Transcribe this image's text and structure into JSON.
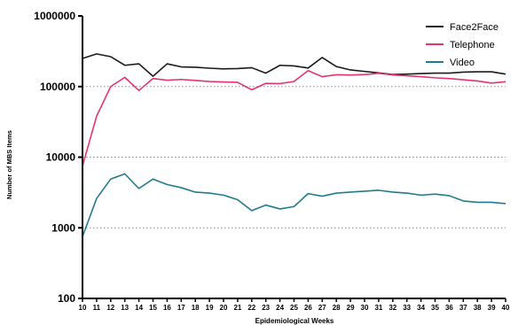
{
  "chart_data": {
    "type": "line",
    "title": "",
    "xlabel": "Epidemiological Weeks",
    "ylabel": "Number of MBS Items",
    "yscale": "log",
    "ylim": [
      100,
      1000000
    ],
    "xlim": [
      10,
      40
    ],
    "grid": "horizontal dotted",
    "legend_position": "top-right",
    "x": [
      10,
      11,
      12,
      13,
      14,
      15,
      16,
      17,
      18,
      19,
      20,
      21,
      22,
      23,
      24,
      25,
      26,
      27,
      28,
      29,
      30,
      31,
      32,
      33,
      34,
      35,
      36,
      37,
      38,
      39,
      40
    ],
    "x_tick_labels": [
      "10",
      "11",
      "12",
      "13",
      "14",
      "15",
      "16",
      "17",
      "18",
      "19",
      "20",
      "21",
      "22",
      "23",
      "24",
      "25",
      "26",
      "27",
      "28",
      "29",
      "30",
      "31",
      "32",
      "33",
      "34",
      "35",
      "36",
      "37",
      "38",
      "39",
      "40"
    ],
    "y_ticks": [
      100,
      1000,
      10000,
      100000,
      1000000
    ],
    "y_tick_labels": [
      "100",
      "1000",
      "10000",
      "100000",
      "1000000"
    ],
    "series": [
      {
        "name": "Face2Face",
        "color": "#1a1a1a",
        "values": [
          250000,
          290000,
          265000,
          200000,
          210000,
          140000,
          210000,
          190000,
          188000,
          182000,
          178000,
          180000,
          185000,
          155000,
          200000,
          196000,
          183000,
          258000,
          192000,
          172000,
          164000,
          156000,
          148000,
          150000,
          153000,
          155000,
          155000,
          160000,
          162000,
          162000,
          150000
        ]
      },
      {
        "name": "Telephone",
        "color": "#e6336f",
        "values": [
          7500,
          38000,
          100000,
          135000,
          88000,
          130000,
          123000,
          126000,
          122000,
          118000,
          116000,
          115000,
          90000,
          111000,
          110000,
          118000,
          168000,
          138000,
          147000,
          146000,
          148000,
          154000,
          146000,
          142000,
          138000,
          133000,
          130000,
          125000,
          120000,
          112000,
          117000
        ]
      },
      {
        "name": "Video",
        "color": "#1f7b8f",
        "values": [
          750,
          2600,
          4900,
          5800,
          3600,
          4900,
          4100,
          3700,
          3200,
          3100,
          2900,
          2500,
          1750,
          2100,
          1850,
          2000,
          3050,
          2800,
          3100,
          3200,
          3300,
          3400,
          3200,
          3100,
          2900,
          3000,
          2850,
          2400,
          2300,
          2300,
          2200
        ]
      }
    ]
  }
}
